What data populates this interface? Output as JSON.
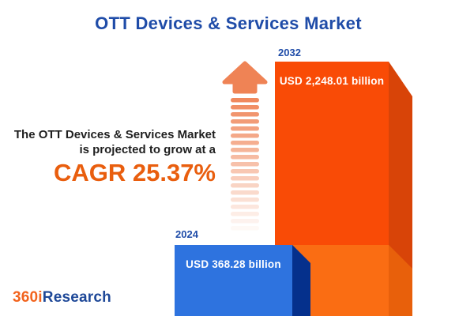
{
  "title": "OTT Devices & Services Market",
  "description": {
    "line1": "The OTT Devices & Services Market",
    "line2": "is projected to grow at a",
    "cagr": "CAGR 25.37%"
  },
  "chart_data": {
    "type": "bar",
    "title": "OTT Devices & Services Market",
    "unit": "USD billion",
    "cagr_percent": 25.37,
    "categories": [
      "2024",
      "2032"
    ],
    "values": [
      368.28,
      2248.01
    ],
    "value_labels": [
      "USD 368.28 billion",
      "USD 2,248.01 billion"
    ],
    "legend": "none",
    "grid": false,
    "orientation": "vertical-3d"
  },
  "bars": [
    {
      "year": "2024",
      "value_label": "USD 368.28 billion",
      "face_color": "#2E73DF",
      "side_color": "#05308C"
    },
    {
      "year": "2032",
      "value_label": "USD 2,248.01 billion",
      "face_color": "#F94B06",
      "side_color": "#D84408",
      "face_color_lower": "#FA6D13",
      "side_color_lower": "#E8600B"
    }
  ],
  "logo": {
    "prefix": "360i",
    "suffix": "Research"
  },
  "colors": {
    "title_blue": "#1F4CA8",
    "cagr_orange": "#E95E0E",
    "arrow_orange": "#EF8355",
    "text_dark": "#1F1F1F",
    "logo_orange": "#F2631D",
    "logo_blue": "#1E4898",
    "background": "#FFFFFF"
  }
}
